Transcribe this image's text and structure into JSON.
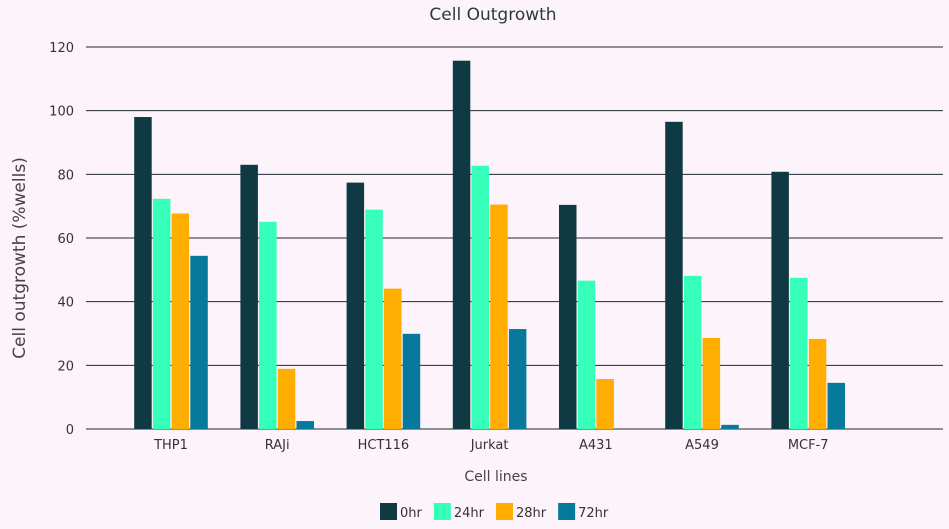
{
  "chart_data": {
    "type": "bar",
    "title": "Cell Outgrowth",
    "xlabel": "Cell lines",
    "ylabel": "Cell outgrowth (%wells)",
    "ylim": [
      0,
      120
    ],
    "yticks": [
      0,
      20,
      40,
      60,
      80,
      100,
      120
    ],
    "grid": true,
    "legend_position": "bottom",
    "categories": [
      "THP1",
      "RAJi",
      "HCT116",
      "Jurkat",
      "A431",
      "A549",
      "MCF-7"
    ],
    "series": [
      {
        "name": "0hr",
        "color": "#0f3a44",
        "values": [
          98,
          83,
          77.4,
          115.7,
          70.4,
          96.5,
          80.8
        ]
      },
      {
        "name": "24hr",
        "color": "#35ffb9",
        "values": [
          72.3,
          65.1,
          68.9,
          82.7,
          46.6,
          48.1,
          47.5
        ]
      },
      {
        "name": "28hr",
        "color": "#ffad00",
        "values": [
          67.7,
          18.9,
          44.1,
          70.5,
          15.7,
          28.6,
          28.3
        ]
      },
      {
        "name": "72hr",
        "color": "#07799b",
        "values": [
          54.4,
          2.5,
          29.9,
          31.4,
          0,
          1.3,
          14.5
        ]
      }
    ]
  }
}
